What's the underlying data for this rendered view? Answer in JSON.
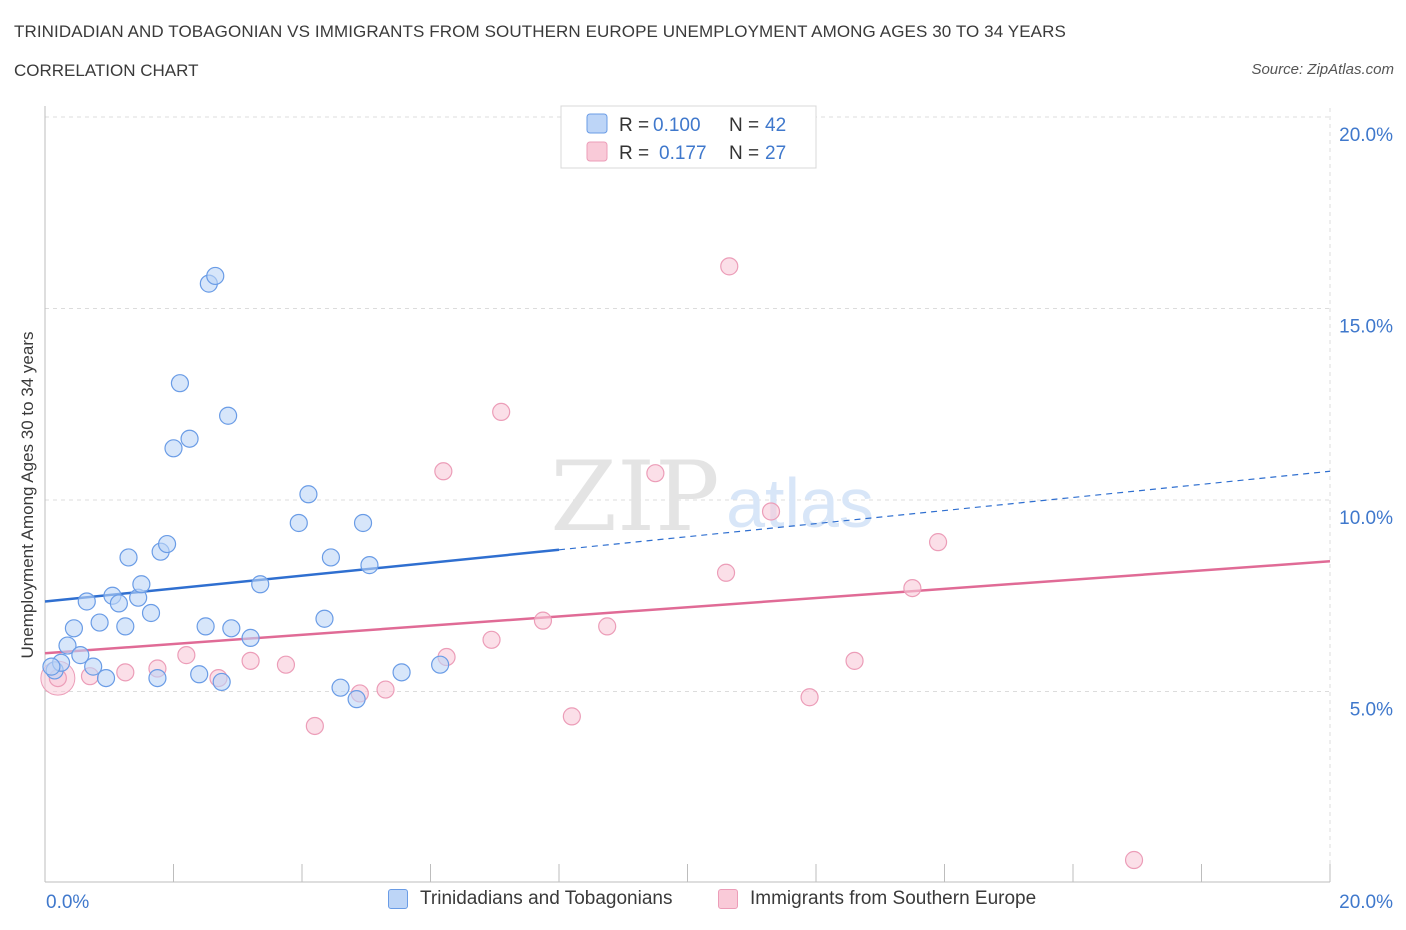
{
  "title": "TRINIDADIAN AND TOBAGONIAN VS IMMIGRANTS FROM SOUTHERN EUROPE UNEMPLOYMENT AMONG AGES 30 TO 34 YEARS",
  "subtitle": "CORRELATION CHART",
  "source": "Source: ZipAtlas.com",
  "watermark": {
    "zip": "ZIP",
    "atlas": "atlas"
  },
  "colors": {
    "blue": "#2f6fd0",
    "blue_fill": "#bdd5f7",
    "blue_stroke": "#6a9ce6",
    "pink": "#e06b96",
    "pink_fill": "#f9cad8",
    "pink_stroke": "#ec9db8",
    "grid": "#dcdcdc",
    "axis_text": "#3f78cc"
  },
  "legend_top": [
    {
      "r_label": "R =",
      "r_value": "0.100",
      "n_label": "N =",
      "n_value": "42"
    },
    {
      "r_label": "R =",
      "r_value": "0.177",
      "n_label": "N =",
      "n_value": "27"
    }
  ],
  "chart_data": {
    "type": "scatter",
    "title": "TRINIDADIAN AND TOBAGONIAN VS IMMIGRANTS FROM SOUTHERN EUROPE UNEMPLOYMENT AMONG AGES 30 TO 34 YEARS",
    "subtitle": "CORRELATION CHART",
    "xlabel": "",
    "ylabel": "Unemployment Among Ages 30 to 34 years",
    "xlim": [
      0,
      20
    ],
    "ylim": [
      0,
      20
    ],
    "x_tick_labels": [
      "0.0%",
      "20.0%"
    ],
    "y_tick_labels": [
      "5.0%",
      "10.0%",
      "15.0%",
      "20.0%"
    ],
    "y_ticks": [
      5,
      10,
      15,
      20
    ],
    "grid": true,
    "legend": "top-center and bottom",
    "series": [
      {
        "name": "Trinidadians and Tobagonians",
        "color": "#6a9ce6",
        "R": 0.1,
        "N": 42,
        "trend": {
          "x0": 0.0,
          "y0": 7.35,
          "x1": 8.0,
          "y1": 8.7,
          "dashed_to_x": 20.0,
          "dashed_to_y": 10.75
        },
        "points": [
          [
            0.15,
            5.55
          ],
          [
            0.25,
            5.75
          ],
          [
            0.35,
            6.2
          ],
          [
            0.45,
            6.65
          ],
          [
            0.55,
            5.95
          ],
          [
            0.65,
            7.35
          ],
          [
            0.75,
            5.65
          ],
          [
            0.85,
            6.8
          ],
          [
            0.95,
            5.35
          ],
          [
            1.05,
            7.5
          ],
          [
            1.15,
            7.3
          ],
          [
            1.25,
            6.7
          ],
          [
            1.3,
            8.5
          ],
          [
            1.45,
            7.45
          ],
          [
            1.5,
            7.8
          ],
          [
            1.65,
            7.05
          ],
          [
            1.75,
            5.35
          ],
          [
            1.8,
            8.65
          ],
          [
            1.9,
            8.85
          ],
          [
            2.0,
            11.35
          ],
          [
            2.1,
            13.05
          ],
          [
            2.25,
            11.6
          ],
          [
            2.4,
            5.45
          ],
          [
            2.5,
            6.7
          ],
          [
            2.55,
            15.65
          ],
          [
            2.65,
            15.85
          ],
          [
            2.75,
            5.25
          ],
          [
            2.85,
            12.2
          ],
          [
            2.9,
            6.65
          ],
          [
            3.2,
            6.4
          ],
          [
            3.35,
            7.8
          ],
          [
            3.95,
            9.4
          ],
          [
            4.1,
            10.15
          ],
          [
            4.35,
            6.9
          ],
          [
            4.45,
            8.5
          ],
          [
            4.6,
            5.1
          ],
          [
            4.85,
            4.8
          ],
          [
            4.95,
            9.4
          ],
          [
            5.05,
            8.3
          ],
          [
            5.55,
            5.5
          ],
          [
            6.15,
            5.7
          ],
          [
            0.1,
            5.65
          ]
        ]
      },
      {
        "name": "Immigrants from Southern Europe",
        "color": "#ec9db8",
        "R": 0.177,
        "N": 27,
        "trend": {
          "x0": 0.0,
          "y0": 6.0,
          "x1": 20.0,
          "y1": 8.4
        },
        "points": [
          [
            0.2,
            5.35
          ],
          [
            0.7,
            5.4
          ],
          [
            1.25,
            5.5
          ],
          [
            1.75,
            5.6
          ],
          [
            2.2,
            5.95
          ],
          [
            2.7,
            5.35
          ],
          [
            3.2,
            5.8
          ],
          [
            3.75,
            5.7
          ],
          [
            4.2,
            4.1
          ],
          [
            4.9,
            4.95
          ],
          [
            5.3,
            5.05
          ],
          [
            6.2,
            10.75
          ],
          [
            6.25,
            5.9
          ],
          [
            6.95,
            6.35
          ],
          [
            7.1,
            12.3
          ],
          [
            7.75,
            6.85
          ],
          [
            8.2,
            4.35
          ],
          [
            8.75,
            6.7
          ],
          [
            9.5,
            10.7
          ],
          [
            10.6,
            8.1
          ],
          [
            10.65,
            16.1
          ],
          [
            11.3,
            9.7
          ],
          [
            11.9,
            4.85
          ],
          [
            12.6,
            5.8
          ],
          [
            13.5,
            7.7
          ],
          [
            13.9,
            8.9
          ],
          [
            16.95,
            0.6
          ]
        ]
      }
    ]
  },
  "legend_bottom": [
    {
      "label": "Trinidadians and Tobagonians"
    },
    {
      "label": "Immigrants from Southern Europe"
    }
  ]
}
